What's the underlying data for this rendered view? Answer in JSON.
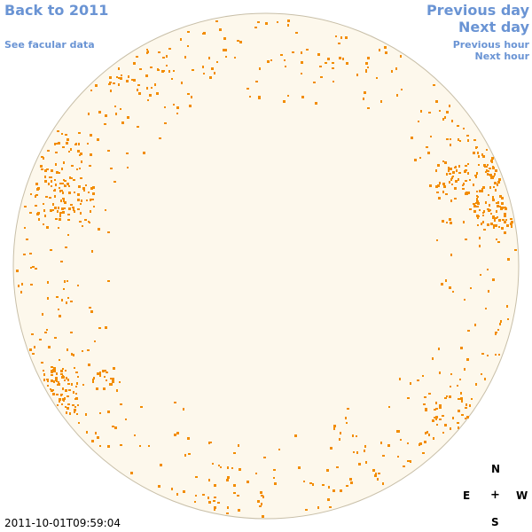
{
  "nav": {
    "back_label": "Back to 2011",
    "facular_label": "See facular data",
    "prev_day_label": "Previous day",
    "next_day_label": "Next day",
    "prev_hour_label": "Previous hour",
    "next_hour_label": "Next hour"
  },
  "timestamp": "2011-10-01T09:59:04",
  "compass": {
    "north": "N",
    "east": "E",
    "center": "+",
    "west": "W",
    "south": "S"
  },
  "colors": {
    "disk_fill": "#fdf8ec",
    "disk_edge": "#c8bfa8",
    "feature": "#f28c00",
    "link": "#6a94d4"
  }
}
